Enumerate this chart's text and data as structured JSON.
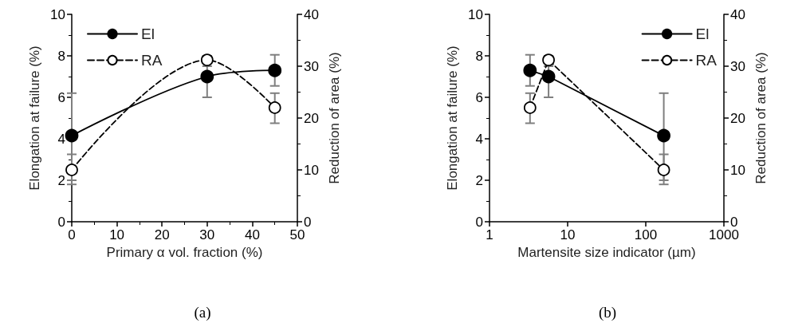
{
  "chart_data": [
    {
      "type": "line",
      "xlabel": "Primary α vol. fraction (%)",
      "ylabel": "Elongation at failure (%)",
      "y2label": "Reduction of area (%)",
      "annotations": [
        "(a)"
      ],
      "series": [
        {
          "name": "El",
          "color": "#000000",
          "marker": "circle",
          "line_style": "solid",
          "x": [
            0,
            30,
            45
          ],
          "values": [
            4.15,
            7.0,
            7.3
          ],
          "errors": [
            [
              2.0,
              6.2
            ],
            [
              6.0,
              8.0
            ],
            [
              6.55,
              8.05
            ]
          ]
        },
        {
          "name": "RA",
          "color": "#000000",
          "marker": "circle",
          "line_style": "dashed",
          "axis": "y2",
          "x": [
            0,
            30,
            45
          ],
          "values": [
            10,
            31.2,
            22
          ],
          "errors": [
            [
              7.2,
              13
            ],
            [
              30,
              32
            ],
            [
              19,
              24.8
            ]
          ]
        }
      ],
      "xlim": [
        0,
        50
      ],
      "xticks": [
        0,
        10,
        20,
        30,
        40,
        50
      ],
      "ylim": [
        0,
        10
      ],
      "yticks": [
        0,
        2,
        4,
        6,
        8,
        10
      ],
      "y2lim": [
        0,
        40
      ],
      "y2ticks": [
        0,
        10,
        20,
        30,
        40
      ],
      "grid": false,
      "legend": "top left"
    },
    {
      "type": "line",
      "xlabel": "Martensite size indicator (µm)",
      "ylabel": "Elongation at failure (%)",
      "y2label": "Reduction of area (%)",
      "annotations": [
        "(b)"
      ],
      "log": "x",
      "series": [
        {
          "name": "El",
          "color": "#000000",
          "marker": "circle",
          "line_style": "solid",
          "x": [
            3.3,
            5.7,
            170
          ],
          "values": [
            7.3,
            7.0,
            4.15
          ],
          "errors": [
            [
              6.55,
              8.05
            ],
            [
              6.0,
              8.0
            ],
            [
              2.0,
              6.2
            ]
          ]
        },
        {
          "name": "RA",
          "color": "#000000",
          "marker": "circle",
          "line_style": "dashed",
          "axis": "y2",
          "x": [
            3.3,
            5.7,
            170
          ],
          "values": [
            22,
            31.2,
            10
          ],
          "errors": [
            [
              19,
              24.8
            ],
            [
              30,
              32
            ],
            [
              7.2,
              13
            ]
          ]
        }
      ],
      "xlim": [
        1,
        1000
      ],
      "xticks": [
        1,
        10,
        100,
        1000
      ],
      "ylim": [
        0,
        10
      ],
      "yticks": [
        0,
        2,
        4,
        6,
        8,
        10
      ],
      "y2lim": [
        0,
        40
      ],
      "y2ticks": [
        0,
        10,
        20,
        30,
        40
      ],
      "grid": false,
      "legend": "top right"
    }
  ]
}
